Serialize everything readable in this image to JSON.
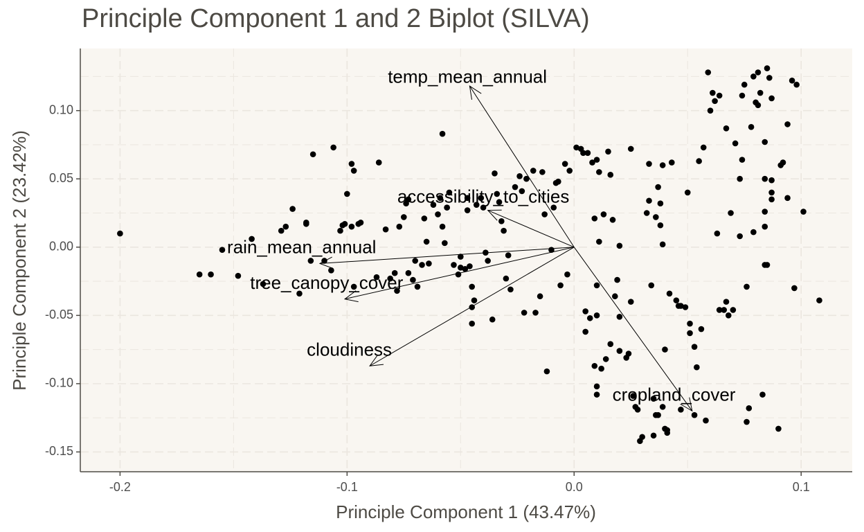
{
  "chart_data": {
    "type": "scatter",
    "title": "Principle Component 1 and 2 Biplot (SILVA)",
    "xlabel": "Principle Component 1 (43.47%)",
    "ylabel": "Principle Component 2 (23.42%)",
    "xlim": [
      -0.2175,
      0.1225
    ],
    "ylim": [
      -0.1645,
      0.1455
    ],
    "x_ticks": [
      -0.2,
      -0.1,
      0.0,
      0.1
    ],
    "x_tick_labels": [
      "-0.2",
      "-0.1",
      "0.0",
      "0.1"
    ],
    "y_ticks": [
      -0.15,
      -0.1,
      -0.05,
      0.0,
      0.05,
      0.1
    ],
    "y_tick_labels": [
      "-0.15",
      "-0.10",
      "-0.05",
      "0.00",
      "0.05",
      "0.10"
    ],
    "grid": true,
    "legend": "none",
    "colors": {
      "panel_background": "#f9f6f1",
      "grid": "#ebe6df",
      "points": "#000000",
      "title": "#4d4a44",
      "axis": "#4d4a44"
    },
    "points": [
      [
        -0.2,
        0.01
      ],
      [
        -0.165,
        -0.02
      ],
      [
        -0.16,
        -0.02
      ],
      [
        -0.155,
        -0.002
      ],
      [
        -0.148,
        -0.021
      ],
      [
        -0.142,
        0.006
      ],
      [
        -0.137,
        -0.027
      ],
      [
        -0.129,
        0.012
      ],
      [
        -0.127,
        0.015
      ],
      [
        -0.124,
        0.028
      ],
      [
        -0.121,
        -0.034
      ],
      [
        -0.118,
        0.018
      ],
      [
        -0.116,
        -0.01
      ],
      [
        -0.115,
        0.068
      ],
      [
        -0.11,
        -0.01
      ],
      [
        -0.107,
        -0.017
      ],
      [
        -0.106,
        0.073
      ],
      [
        -0.103,
        0.012
      ],
      [
        -0.102,
        0.016
      ],
      [
        -0.101,
        0.017
      ],
      [
        -0.1,
        0.039
      ],
      [
        -0.098,
        0.015
      ],
      [
        -0.098,
        0.061
      ],
      [
        -0.097,
        0.056
      ],
      [
        -0.097,
        -0.029
      ],
      [
        -0.095,
        0.017
      ],
      [
        -0.094,
        0.018
      ],
      [
        -0.087,
        -0.022
      ],
      [
        -0.086,
        0.062
      ],
      [
        -0.083,
        0.013
      ],
      [
        -0.081,
        -0.023
      ],
      [
        -0.079,
        -0.019
      ],
      [
        -0.078,
        -0.032
      ],
      [
        -0.077,
        0.015
      ],
      [
        -0.075,
        0.022
      ],
      [
        -0.074,
        0.032
      ],
      [
        -0.073,
        0.035
      ],
      [
        -0.073,
        -0.019
      ],
      [
        -0.071,
        -0.024
      ],
      [
        -0.07,
        -0.01
      ],
      [
        -0.069,
        -0.029
      ],
      [
        -0.067,
        -0.013
      ],
      [
        -0.066,
        0.021
      ],
      [
        -0.065,
        0.004
      ],
      [
        -0.064,
        -0.012
      ],
      [
        -0.062,
        0.031
      ],
      [
        -0.06,
        0.024
      ],
      [
        -0.059,
        0.036
      ],
      [
        -0.058,
        0.083
      ],
      [
        -0.058,
        0.015
      ],
      [
        -0.057,
        0.003
      ],
      [
        -0.056,
        0.029
      ],
      [
        -0.055,
        0.04
      ],
      [
        -0.053,
        -0.013
      ],
      [
        -0.051,
        -0.02
      ],
      [
        -0.05,
        -0.007
      ],
      [
        -0.05,
        -0.015
      ],
      [
        -0.048,
        -0.016
      ],
      [
        -0.047,
        0.027
      ],
      [
        -0.047,
        0.036
      ],
      [
        -0.046,
        -0.014
      ],
      [
        -0.045,
        -0.029
      ],
      [
        -0.045,
        -0.044
      ],
      [
        -0.045,
        -0.056
      ],
      [
        -0.044,
        -0.039
      ],
      [
        -0.043,
        0.031
      ],
      [
        -0.041,
        0.036
      ],
      [
        -0.04,
        0.029
      ],
      [
        -0.039,
        -0.004
      ],
      [
        -0.038,
        -0.01
      ],
      [
        -0.036,
        -0.053
      ],
      [
        -0.035,
        0.054
      ],
      [
        -0.034,
        0.039
      ],
      [
        -0.033,
        0.033
      ],
      [
        -0.032,
        0.019
      ],
      [
        -0.031,
        0.012
      ],
      [
        -0.03,
        -0.023
      ],
      [
        -0.029,
        -0.006
      ],
      [
        -0.028,
        -0.031
      ],
      [
        -0.026,
        0.044
      ],
      [
        -0.024,
        0.052
      ],
      [
        -0.023,
        0.041
      ],
      [
        -0.022,
        -0.048
      ],
      [
        -0.021,
        0.05
      ],
      [
        -0.018,
        0.056
      ],
      [
        -0.017,
        -0.048
      ],
      [
        -0.015,
        -0.036
      ],
      [
        -0.014,
        0.055
      ],
      [
        -0.013,
        0.024
      ],
      [
        -0.012,
        -0.091
      ],
      [
        -0.01,
        -0.002
      ],
      [
        -0.009,
        0.029
      ],
      [
        -0.008,
        0.047
      ],
      [
        -0.007,
        0.048
      ],
      [
        -0.006,
        -0.028
      ],
      [
        -0.004,
        0.061
      ],
      [
        -0.003,
        -0.02
      ],
      [
        -0.002,
        0.056
      ],
      [
        0.001,
        0.073
      ],
      [
        0.003,
        0.072
      ],
      [
        0.004,
        0.069
      ],
      [
        0.005,
        -0.047
      ],
      [
        0.005,
        -0.062
      ],
      [
        0.006,
        0.069
      ],
      [
        0.007,
        -0.052
      ],
      [
        0.008,
        0.062
      ],
      [
        0.009,
        0.021
      ],
      [
        0.009,
        -0.087
      ],
      [
        0.01,
        0.064
      ],
      [
        0.01,
        -0.028
      ],
      [
        0.01,
        -0.05
      ],
      [
        0.01,
        -0.102
      ],
      [
        0.01,
        -0.108
      ],
      [
        0.011,
        0.055
      ],
      [
        0.011,
        0.004
      ],
      [
        0.012,
        -0.089
      ],
      [
        0.013,
        0.024
      ],
      [
        0.014,
        -0.082
      ],
      [
        0.015,
        0.07
      ],
      [
        0.016,
        0.053
      ],
      [
        0.016,
        -0.071
      ],
      [
        0.017,
        0.02
      ],
      [
        0.018,
        -0.036
      ],
      [
        0.019,
        -0.024
      ],
      [
        0.02,
        0.001
      ],
      [
        0.02,
        -0.051
      ],
      [
        0.02,
        -0.076
      ],
      [
        0.023,
        -0.081
      ],
      [
        0.024,
        -0.078
      ],
      [
        0.025,
        -0.04
      ],
      [
        0.025,
        0.072
      ],
      [
        0.026,
        -0.109
      ],
      [
        0.027,
        -0.117
      ],
      [
        0.028,
        -0.119
      ],
      [
        0.029,
        -0.142
      ],
      [
        0.03,
        -0.139
      ],
      [
        0.032,
        0.025
      ],
      [
        0.033,
        0.061
      ],
      [
        0.033,
        0.034
      ],
      [
        0.034,
        -0.028
      ],
      [
        0.035,
        -0.138
      ],
      [
        0.035,
        -0.111
      ],
      [
        0.036,
        -0.123
      ],
      [
        0.036,
        0.022
      ],
      [
        0.037,
        -0.123
      ],
      [
        0.037,
        0.044
      ],
      [
        0.038,
        0.032
      ],
      [
        0.038,
        0.016
      ],
      [
        0.039,
        0.06
      ],
      [
        0.039,
        0.002
      ],
      [
        0.039,
        -0.117
      ],
      [
        0.04,
        -0.075
      ],
      [
        0.04,
        -0.133
      ],
      [
        0.041,
        -0.134
      ],
      [
        0.041,
        -0.136
      ],
      [
        0.042,
        -0.034
      ],
      [
        0.043,
        0.062
      ],
      [
        0.045,
        -0.039
      ],
      [
        0.046,
        -0.043
      ],
      [
        0.047,
        -0.043
      ],
      [
        0.049,
        -0.044
      ],
      [
        0.05,
        0.04
      ],
      [
        0.051,
        -0.056
      ],
      [
        0.051,
        -0.063
      ],
      [
        0.053,
        -0.073
      ],
      [
        0.054,
        -0.088
      ],
      [
        0.055,
        0.063
      ],
      [
        0.057,
        0.073
      ],
      [
        0.059,
        0.128
      ],
      [
        0.06,
        0.1
      ],
      [
        0.061,
        0.113
      ],
      [
        0.062,
        0.107
      ],
      [
        0.063,
        0.01
      ],
      [
        0.064,
        0.111
      ],
      [
        0.064,
        -0.046
      ],
      [
        0.066,
        -0.046
      ],
      [
        0.067,
        -0.04
      ],
      [
        0.067,
        0.087
      ],
      [
        0.068,
        -0.05
      ],
      [
        0.069,
        0.025
      ],
      [
        0.07,
        -0.046
      ],
      [
        0.071,
        0.076
      ],
      [
        0.073,
        0.008
      ],
      [
        0.073,
        0.05
      ],
      [
        0.074,
        0.064
      ],
      [
        0.074,
        0.111
      ],
      [
        0.075,
        0.119
      ],
      [
        0.076,
        -0.029
      ],
      [
        0.076,
        -0.128
      ],
      [
        0.077,
        -0.118
      ],
      [
        0.078,
        0.088
      ],
      [
        0.079,
        0.011
      ],
      [
        0.079,
        0.125
      ],
      [
        0.08,
        0.106
      ],
      [
        0.081,
        0.104
      ],
      [
        0.081,
        0.128
      ],
      [
        0.082,
        0.113
      ],
      [
        0.083,
        -0.108
      ],
      [
        0.084,
        0.015
      ],
      [
        0.084,
        -0.013
      ],
      [
        0.084,
        0.05
      ],
      [
        0.084,
        0.026
      ],
      [
        0.084,
        0.077
      ],
      [
        0.085,
        0.131
      ],
      [
        0.085,
        -0.013
      ],
      [
        0.086,
        0.124
      ],
      [
        0.087,
        0.049
      ],
      [
        0.087,
        0.035
      ],
      [
        0.087,
        0.04
      ],
      [
        0.087,
        0.109
      ],
      [
        0.09,
        -0.133
      ],
      [
        0.091,
        0.06
      ],
      [
        0.092,
        0.062
      ],
      [
        0.094,
        0.036
      ],
      [
        0.094,
        0.09
      ],
      [
        0.096,
        0.122
      ],
      [
        0.097,
        -0.03
      ],
      [
        0.098,
        0.119
      ],
      [
        0.101,
        0.026
      ],
      [
        0.108,
        -0.039
      ],
      [
        -0.118,
        0.017
      ],
      [
        -0.056,
        0.029
      ],
      [
        0.056,
        -0.06
      ],
      [
        0.047,
        -0.119
      ],
      [
        0.053,
        -0.123
      ],
      [
        0.058,
        -0.127
      ]
    ],
    "loadings": [
      {
        "name": "temp_mean_annual",
        "x": -0.046,
        "y": 0.118,
        "label_x": -0.047,
        "label_y": 0.124
      },
      {
        "name": "accessibility_to_cities",
        "x": -0.038,
        "y": 0.027,
        "label_x": -0.04,
        "label_y": 0.036
      },
      {
        "name": "rain_mean_annual",
        "x": -0.112,
        "y": -0.012,
        "label_x": -0.12,
        "label_y": -0.001
      },
      {
        "name": "tree_canopy_cover",
        "x": -0.101,
        "y": -0.038,
        "label_x": -0.109,
        "label_y": -0.027
      },
      {
        "name": "cloudiness",
        "x": -0.09,
        "y": -0.087,
        "label_x": -0.099,
        "label_y": -0.076
      },
      {
        "name": "cropland_cover",
        "x": 0.052,
        "y": -0.12,
        "label_x": 0.044,
        "label_y": -0.109
      }
    ]
  }
}
